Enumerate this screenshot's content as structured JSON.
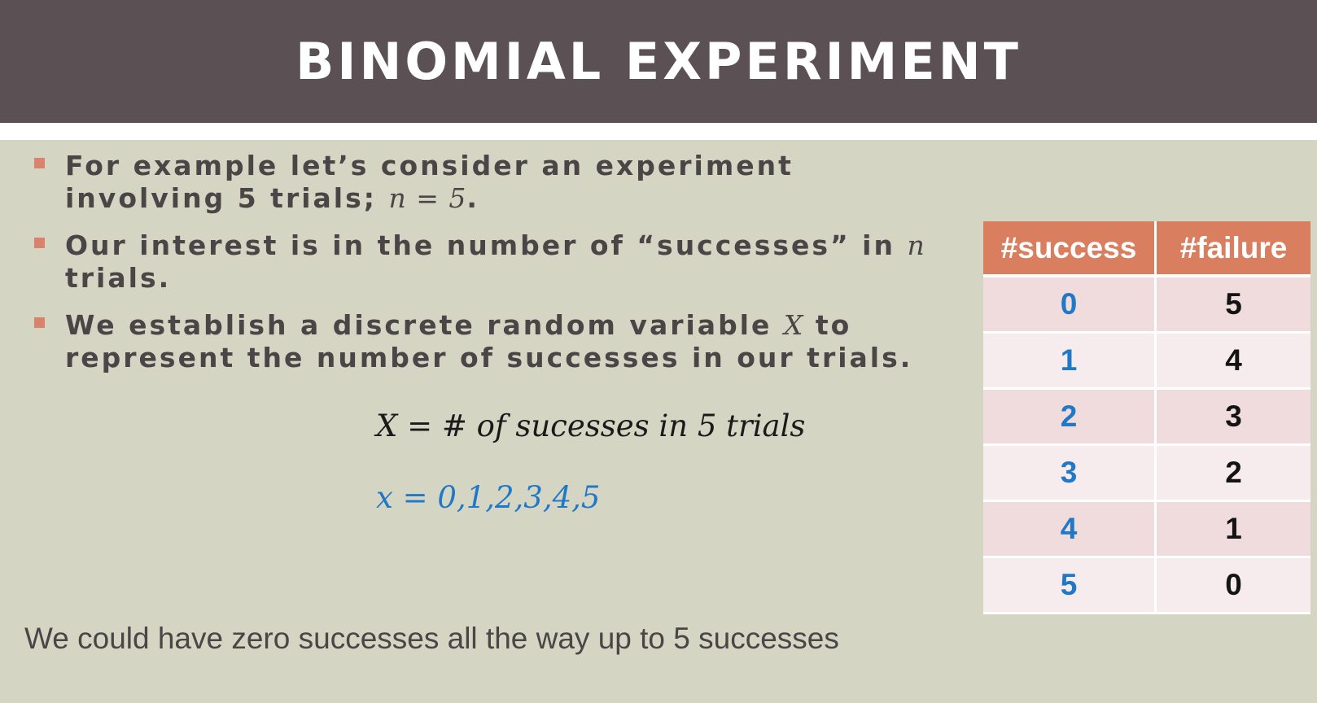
{
  "slide": {
    "title": "BINOMIAL EXPERIMENT"
  },
  "bullets": [
    {
      "text_before": "For example let’s consider an experiment involving 5 trials; ",
      "math": "n = 5",
      "text_after": "."
    },
    {
      "text_before": "Our interest is in the number of “successes” in ",
      "math": "n",
      "text_after": " trials."
    },
    {
      "text_before": "We establish a discrete random variable ",
      "math": "X",
      "text_after": " to represent the number of successes in our trials."
    }
  ],
  "equations": {
    "definition": "X = # of sucesses in 5 trials",
    "values": "x = 0,1,2,3,4,5"
  },
  "table": {
    "headers": [
      "#success",
      "#failure"
    ],
    "rows": [
      [
        "0",
        "5"
      ],
      [
        "1",
        "4"
      ],
      [
        "2",
        "3"
      ],
      [
        "3",
        "2"
      ],
      [
        "4",
        "1"
      ],
      [
        "5",
        "0"
      ]
    ]
  },
  "footer": {
    "text": "We could have zero successes all the way up to 5 successes"
  },
  "colors": {
    "header_bg": "#5b5053",
    "body_bg": "#d4d6c3",
    "accent": "#d97e5f",
    "value_blue": "#1f79c8"
  }
}
